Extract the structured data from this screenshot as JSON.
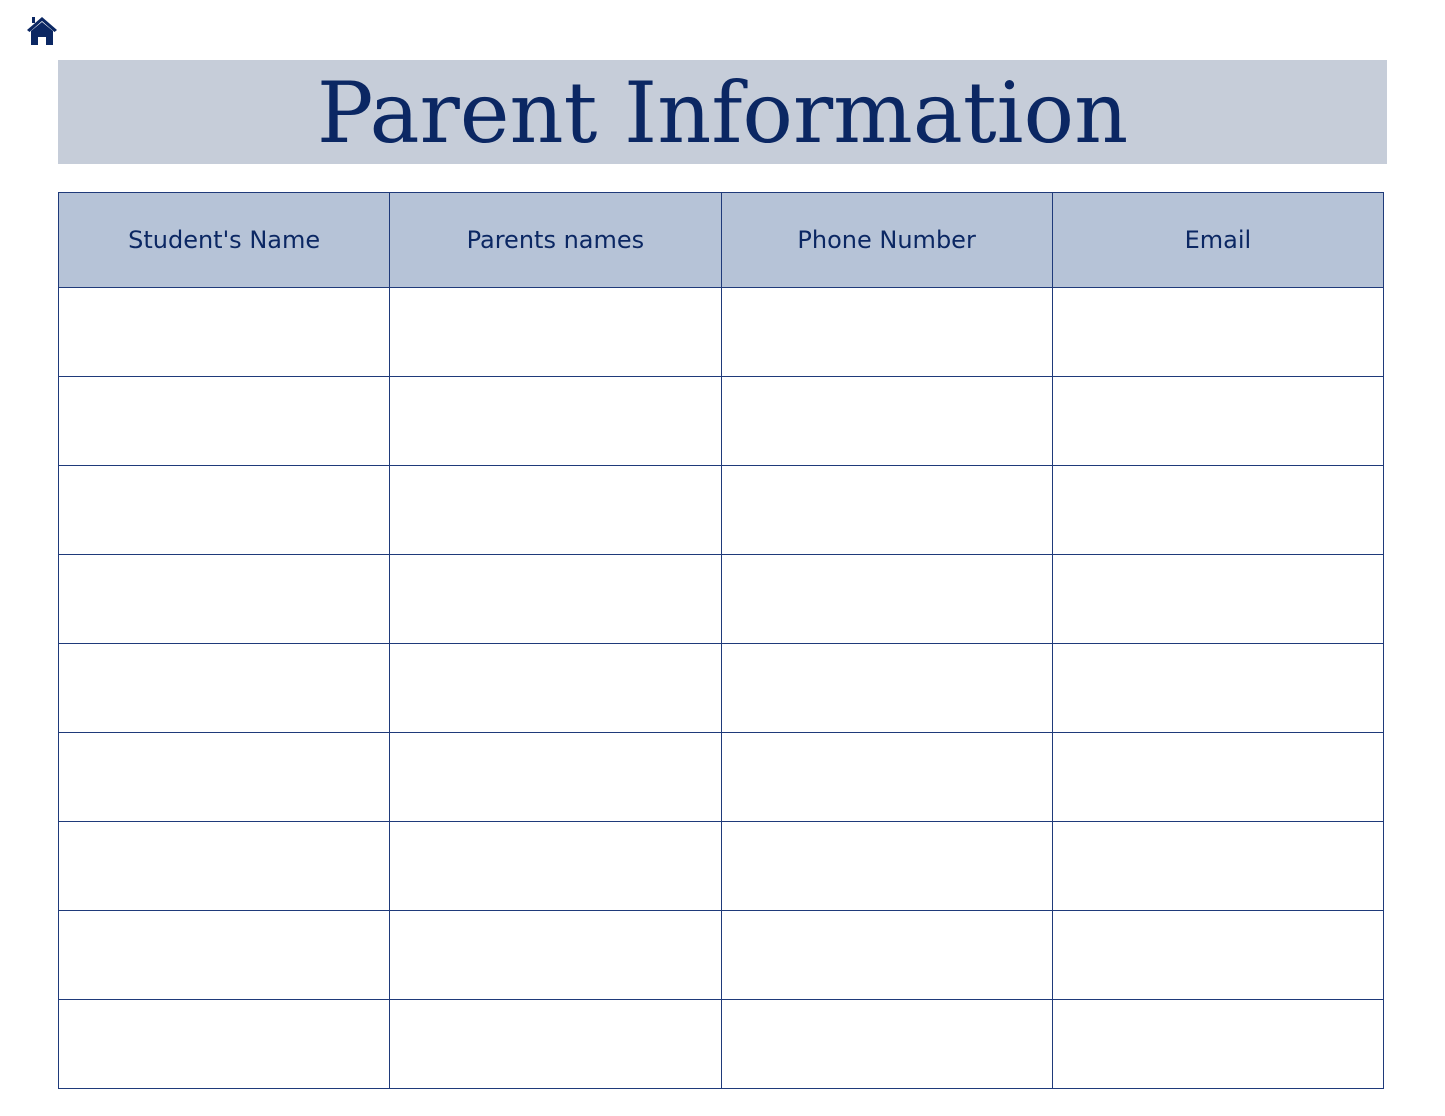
{
  "home_icon": "home-icon",
  "title": "Parent Information",
  "colors": {
    "accent": "#0b2763",
    "title_band": "#c6cdd9",
    "header_fill": "#b6c3d7"
  },
  "table": {
    "headers": [
      "Student's Name",
      "Parents names",
      "Phone Number",
      "Email"
    ],
    "rows": [
      [
        "",
        "",
        "",
        ""
      ],
      [
        "",
        "",
        "",
        ""
      ],
      [
        "",
        "",
        "",
        ""
      ],
      [
        "",
        "",
        "",
        ""
      ],
      [
        "",
        "",
        "",
        ""
      ],
      [
        "",
        "",
        "",
        ""
      ],
      [
        "",
        "",
        "",
        ""
      ],
      [
        "",
        "",
        "",
        ""
      ],
      [
        "",
        "",
        "",
        ""
      ]
    ]
  }
}
